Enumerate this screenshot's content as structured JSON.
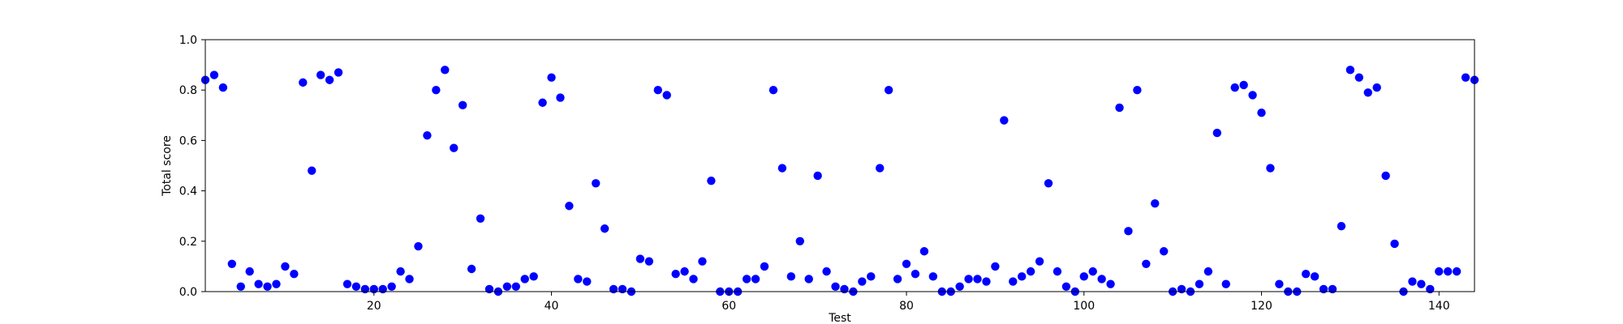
{
  "chart_data": {
    "type": "scatter",
    "title": "",
    "xlabel": "Test",
    "ylabel": "Total score",
    "xlim": [
      1,
      144
    ],
    "ylim": [
      0.0,
      1.0
    ],
    "xticks": [
      20,
      40,
      60,
      80,
      100,
      120,
      140
    ],
    "yticks": [
      0.0,
      0.2,
      0.4,
      0.6,
      0.8,
      1.0
    ],
    "xtick_labels": [
      "20",
      "40",
      "60",
      "80",
      "100",
      "120",
      "140"
    ],
    "ytick_labels": [
      "0.0",
      "0.2",
      "0.4",
      "0.6",
      "0.8",
      "1.0"
    ],
    "grid": false,
    "marker_color": "#0000ff",
    "series": [
      {
        "x": [
          1,
          2,
          3,
          4,
          5,
          6,
          7,
          8,
          9,
          10,
          11,
          12,
          13,
          14,
          15,
          16,
          17,
          18,
          19,
          20,
          21,
          22,
          23,
          24,
          25,
          26,
          27,
          28,
          29,
          30,
          31,
          32,
          33,
          34,
          35,
          36,
          37,
          38,
          39,
          40,
          41,
          42,
          43,
          44,
          45,
          46,
          47,
          48,
          49,
          50,
          51,
          52,
          53,
          54,
          55,
          56,
          57,
          58,
          59,
          60,
          61,
          62,
          63,
          64,
          65,
          66,
          67,
          68,
          69,
          70,
          71,
          72,
          73,
          74,
          75,
          76,
          77,
          78,
          79,
          80,
          81,
          82,
          83,
          84,
          85,
          86,
          87,
          88,
          89,
          90,
          91,
          92,
          93,
          94,
          95,
          96,
          97,
          98,
          99,
          100,
          101,
          102,
          103,
          104,
          105,
          106,
          107,
          108,
          109,
          110,
          111,
          112,
          113,
          114,
          115,
          116,
          117,
          118,
          119,
          120,
          121,
          122,
          123,
          124,
          125,
          126,
          127,
          128,
          129,
          130,
          131,
          132,
          133,
          134,
          135,
          136,
          137,
          138,
          139,
          140,
          141,
          142,
          143,
          144
        ],
        "y": [
          0.84,
          0.86,
          0.81,
          0.11,
          0.02,
          0.08,
          0.03,
          0.02,
          0.03,
          0.1,
          0.07,
          0.83,
          0.48,
          0.86,
          0.84,
          0.87,
          0.03,
          0.02,
          0.01,
          0.01,
          0.01,
          0.02,
          0.08,
          0.05,
          0.18,
          0.62,
          0.8,
          0.88,
          0.57,
          0.74,
          0.09,
          0.29,
          0.01,
          0.0,
          0.02,
          0.02,
          0.05,
          0.06,
          0.75,
          0.85,
          0.77,
          0.34,
          0.05,
          0.04,
          0.43,
          0.25,
          0.01,
          0.01,
          0.0,
          0.13,
          0.12,
          0.8,
          0.78,
          0.07,
          0.08,
          0.05,
          0.12,
          0.44,
          0.0,
          0.0,
          0.0,
          0.05,
          0.05,
          0.1,
          0.8,
          0.49,
          0.06,
          0.2,
          0.05,
          0.46,
          0.08,
          0.02,
          0.01,
          0.0,
          0.04,
          0.06,
          0.49,
          0.8,
          0.05,
          0.11,
          0.07,
          0.16,
          0.06,
          0.0,
          0.0,
          0.02,
          0.05,
          0.05,
          0.04,
          0.1,
          0.68,
          0.04,
          0.06,
          0.08,
          0.12,
          0.43,
          0.08,
          0.02,
          0.0,
          0.06,
          0.08,
          0.05,
          0.03,
          0.73,
          0.24,
          0.8,
          0.11,
          0.35,
          0.16,
          0.0,
          0.01,
          0.0,
          0.03,
          0.08,
          0.63,
          0.03,
          0.81,
          0.82,
          0.78,
          0.71,
          0.49,
          0.03,
          0.0,
          0.0,
          0.07,
          0.06,
          0.01,
          0.01,
          0.26,
          0.88,
          0.85,
          0.79,
          0.81,
          0.46,
          0.19,
          0.0,
          0.04,
          0.03,
          0.01,
          0.08,
          0.08,
          0.08,
          0.85,
          0.84
        ]
      }
    ]
  }
}
